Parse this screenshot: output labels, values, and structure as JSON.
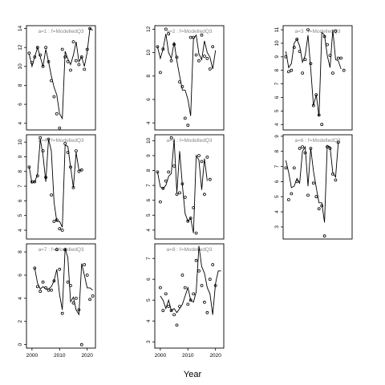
{
  "figure": {
    "xlabel": "Year"
  },
  "chart_data": [
    {
      "type": "line",
      "label": "a=1 : f=ModelledQ3",
      "xlim": [
        1998,
        2023
      ],
      "ylim": [
        3.3,
        14.3
      ],
      "yticks": [
        4,
        6,
        8,
        10,
        12,
        14
      ],
      "xticks": [
        2000,
        2010,
        2020
      ],
      "x": [
        1999,
        2000,
        2001,
        2002,
        2003,
        2004,
        2005,
        2006,
        2007,
        2008,
        2009,
        2010,
        2011,
        2012,
        2013,
        2014,
        2015,
        2016,
        2017,
        2018,
        2019,
        2020,
        2021,
        2022
      ],
      "series": [
        {
          "role": "fitted",
          "values": [
            11.3,
            10.0,
            11.0,
            12.0,
            11.0,
            10.0,
            11.8,
            10.5,
            9.0,
            7.8,
            7.0,
            5.0,
            4.5,
            11.6,
            10.8,
            10.2,
            11.2,
            12.6,
            10.5,
            11.0,
            10.0,
            11.5,
            14.0,
            13.8
          ]
        },
        {
          "role": "observed",
          "values": [
            11.4,
            10.4,
            11.0,
            12.0,
            11.2,
            10.0,
            12.0,
            10.5,
            8.5,
            6.8,
            5.0,
            3.5,
            11.8,
            11.0,
            10.5,
            9.6,
            12.6,
            10.6,
            10.2,
            11.0,
            9.7,
            11.8,
            14.0,
            null
          ]
        }
      ]
    },
    {
      "type": "line",
      "label": "a=4 : f=ModelledQ3",
      "xlim": [
        1998,
        2023
      ],
      "ylim": [
        3.4,
        10.5
      ],
      "yticks": [
        4,
        5,
        6,
        7,
        8,
        9,
        10
      ],
      "xticks": [
        2000,
        2010,
        2020
      ],
      "x": [
        1999,
        2000,
        2001,
        2002,
        2003,
        2004,
        2005,
        2006,
        2007,
        2008,
        2009,
        2010,
        2011,
        2012,
        2013,
        2014,
        2015,
        2016,
        2017,
        2018,
        2019,
        2020,
        2021,
        2022
      ],
      "series": [
        {
          "role": "fitted",
          "values": [
            8.3,
            7.2,
            7.3,
            7.8,
            10.2,
            9.1,
            7.3,
            10.2,
            9.4,
            5.9,
            4.6,
            4.6,
            4.2,
            9.8,
            9.7,
            8.3,
            6.9,
            9.3,
            8.1,
            8.1,
            null,
            null,
            null,
            null
          ]
        },
        {
          "role": "observed",
          "values": [
            8.3,
            7.3,
            7.3,
            7.7,
            10.3,
            9.4,
            7.6,
            10.2,
            6.4,
            4.6,
            4.7,
            4.1,
            4.0,
            9.9,
            9.3,
            8.3,
            6.9,
            9.4,
            8.0,
            8.1,
            null,
            null,
            null,
            null
          ]
        }
      ]
    },
    {
      "type": "line",
      "label": "a=7 : f=ModelledQ3",
      "xlim": [
        1998,
        2023
      ],
      "ylim": [
        -0.3,
        8.7
      ],
      "yticks": [
        0,
        2,
        4,
        6,
        8
      ],
      "xticks": [
        2000,
        2010,
        2020
      ],
      "x": [
        1999,
        2000,
        2001,
        2002,
        2003,
        2004,
        2005,
        2006,
        2007,
        2008,
        2009,
        2010,
        2011,
        2012,
        2013,
        2014,
        2015,
        2016,
        2017,
        2018,
        2019,
        2020,
        2021,
        2022
      ],
      "series": [
        {
          "role": "fitted",
          "values": [
            null,
            null,
            6.6,
            5.3,
            4.8,
            5.0,
            4.8,
            4.8,
            5.0,
            5.5,
            6.5,
            4.3,
            3.0,
            8.3,
            7.5,
            3.7,
            4.1,
            3.0,
            2.6,
            7.0,
            6.0,
            4.9,
            4.9,
            4.7
          ]
        },
        {
          "role": "observed",
          "values": [
            null,
            null,
            6.6,
            5.0,
            4.6,
            5.4,
            4.9,
            4.7,
            4.7,
            5.5,
            8.2,
            6.5,
            2.7,
            8.2,
            5.4,
            5.1,
            3.6,
            4.0,
            3.0,
            0.0,
            6.9,
            6.0,
            3.9,
            4.2
          ]
        }
      ]
    },
    {
      "type": "line",
      "label": "a=2 : f=ModelledQ3",
      "xlim": [
        1998,
        2023
      ],
      "ylim": [
        3.4,
        12.3
      ],
      "yticks": [
        4,
        6,
        8,
        10,
        12
      ],
      "xticks": [
        2000,
        2010,
        2020
      ],
      "x": [
        1999,
        2000,
        2001,
        2002,
        2003,
        2004,
        2005,
        2006,
        2007,
        2008,
        2009,
        2010,
        2011,
        2012,
        2013,
        2014,
        2015,
        2016,
        2017,
        2018,
        2019,
        2020,
        2021,
        2022
      ],
      "series": [
        {
          "role": "fitted",
          "values": [
            10.5,
            9.5,
            10.3,
            11.6,
            10.0,
            9.5,
            10.9,
            9.3,
            8.0,
            6.8,
            6.8,
            6.0,
            4.6,
            11.2,
            11.5,
            9.9,
            9.4,
            11.0,
            10.0,
            9.6,
            8.6,
            10.2,
            null,
            null
          ]
        },
        {
          "role": "observed",
          "values": [
            10.5,
            8.3,
            10.3,
            12.0,
            11.6,
            9.3,
            10.7,
            9.6,
            7.5,
            7.1,
            4.4,
            3.8,
            11.3,
            11.3,
            9.8,
            9.3,
            11.5,
            9.7,
            9.5,
            8.6,
            10.5,
            null,
            null,
            null
          ]
        }
      ]
    },
    {
      "type": "line",
      "label": "a=5 : f=ModelledQ3",
      "xlim": [
        1998,
        2023
      ],
      "ylim": [
        3.4,
        10.4
      ],
      "yticks": [
        4,
        5,
        6,
        7,
        8,
        9,
        10
      ],
      "xticks": [
        2000,
        2010,
        2020
      ],
      "x": [
        1999,
        2000,
        2001,
        2002,
        2003,
        2004,
        2005,
        2006,
        2007,
        2008,
        2009,
        2010,
        2011,
        2012,
        2013,
        2014,
        2015,
        2016,
        2017,
        2018,
        2019,
        2020,
        2021,
        2022
      ],
      "series": [
        {
          "role": "fitted",
          "values": [
            7.9,
            6.9,
            6.8,
            7.0,
            7.6,
            7.8,
            10.1,
            6.5,
            9.3,
            7.0,
            5.1,
            4.6,
            4.8,
            3.8,
            9.0,
            8.7,
            6.7,
            8.8,
            7.3,
            null,
            null,
            null,
            null,
            null
          ]
        },
        {
          "role": "observed",
          "values": [
            7.9,
            5.9,
            6.8,
            7.3,
            7.9,
            10.2,
            8.3,
            6.4,
            6.5,
            7.1,
            6.2,
            4.6,
            4.8,
            5.5,
            3.8,
            9.0,
            8.6,
            6.4,
            8.9,
            7.4,
            null,
            null,
            null,
            null
          ]
        }
      ]
    },
    {
      "type": "line",
      "label": "a=8 : f=ModelledQ3",
      "xlim": [
        1998,
        2023
      ],
      "ylim": [
        2.7,
        7.7
      ],
      "yticks": [
        3,
        4,
        5,
        6,
        7
      ],
      "xticks": [
        2000,
        2010,
        2020
      ],
      "x": [
        1999,
        2000,
        2001,
        2002,
        2003,
        2004,
        2005,
        2006,
        2007,
        2008,
        2009,
        2010,
        2011,
        2012,
        2013,
        2014,
        2015,
        2016,
        2017,
        2018,
        2019,
        2020,
        2021,
        2022
      ],
      "series": [
        {
          "role": "fitted",
          "values": [
            null,
            5.2,
            5.0,
            4.6,
            5.0,
            4.5,
            4.6,
            4.4,
            4.6,
            4.8,
            5.2,
            5.6,
            5.0,
            4.9,
            5.4,
            7.6,
            6.6,
            6.3,
            5.6,
            5.3,
            4.3,
            5.8,
            6.4,
            6.4
          ]
        },
        {
          "role": "observed",
          "values": [
            null,
            5.6,
            4.5,
            5.3,
            4.7,
            4.5,
            4.3,
            3.8,
            4.7,
            6.2,
            5.6,
            4.8,
            5.0,
            5.3,
            6.9,
            6.4,
            5.7,
            4.9,
            4.4,
            6.0,
            6.7,
            5.7,
            null,
            null
          ]
        }
      ]
    },
    {
      "type": "line",
      "label": "a=3 : f=ModelledQ3",
      "xlim": [
        1998,
        2023
      ],
      "ylim": [
        3.6,
        11.3
      ],
      "yticks": [
        4,
        5,
        6,
        7,
        8,
        9,
        10,
        11
      ],
      "xticks": [
        2000,
        2010,
        2020
      ],
      "x": [
        1999,
        2000,
        2001,
        2002,
        2003,
        2004,
        2005,
        2006,
        2007,
        2008,
        2009,
        2010,
        2011,
        2012,
        2013,
        2014,
        2015,
        2016,
        2017,
        2018,
        2019,
        2020,
        2021,
        2022
      ],
      "series": [
        {
          "role": "fitted",
          "values": [
            9.4,
            8.2,
            8.5,
            10.0,
            10.3,
            9.8,
            8.6,
            9.1,
            10.6,
            8.1,
            5.4,
            6.2,
            4.6,
            10.8,
            10.6,
            9.1,
            8.2,
            11.0,
            8.8,
            8.7,
            8.1,
            null,
            null,
            null
          ]
        },
        {
          "role": "observed",
          "values": [
            9.0,
            7.9,
            8.0,
            9.7,
            10.3,
            9.4,
            7.8,
            8.8,
            11.0,
            8.5,
            5.4,
            6.2,
            4.7,
            4.0,
            10.5,
            9.9,
            9.1,
            7.8,
            10.9,
            8.9,
            8.9,
            8.0,
            null,
            null
          ]
        }
      ]
    },
    {
      "type": "line",
      "label": "a=6 : f=ModelledQ3",
      "xlim": [
        1998,
        2023
      ],
      "ylim": [
        2.2,
        9.1
      ],
      "yticks": [
        3,
        4,
        5,
        6,
        7,
        8,
        9
      ],
      "xticks": [
        2000,
        2010,
        2020
      ],
      "x": [
        1999,
        2000,
        2001,
        2002,
        2003,
        2004,
        2005,
        2006,
        2007,
        2008,
        2009,
        2010,
        2011,
        2012,
        2013,
        2014,
        2015,
        2016,
        2017,
        2018,
        2019,
        2020,
        2021,
        2022
      ],
      "series": [
        {
          "role": "fitted",
          "values": [
            7.4,
            6.6,
            5.6,
            5.7,
            6.2,
            5.9,
            8.0,
            8.3,
            5.7,
            8.2,
            6.7,
            5.6,
            4.6,
            4.6,
            3.3,
            8.4,
            8.3,
            6.6,
            6.3,
            8.6,
            null,
            null,
            null,
            null
          ]
        },
        {
          "role": "observed",
          "values": [
            6.9,
            4.8,
            5.2,
            6.9,
            6.0,
            8.2,
            8.3,
            7.9,
            5.1,
            8.2,
            5.9,
            5.0,
            4.2,
            4.4,
            2.4,
            8.3,
            8.2,
            6.5,
            6.1,
            8.6,
            null,
            null,
            null,
            null
          ]
        }
      ]
    }
  ]
}
